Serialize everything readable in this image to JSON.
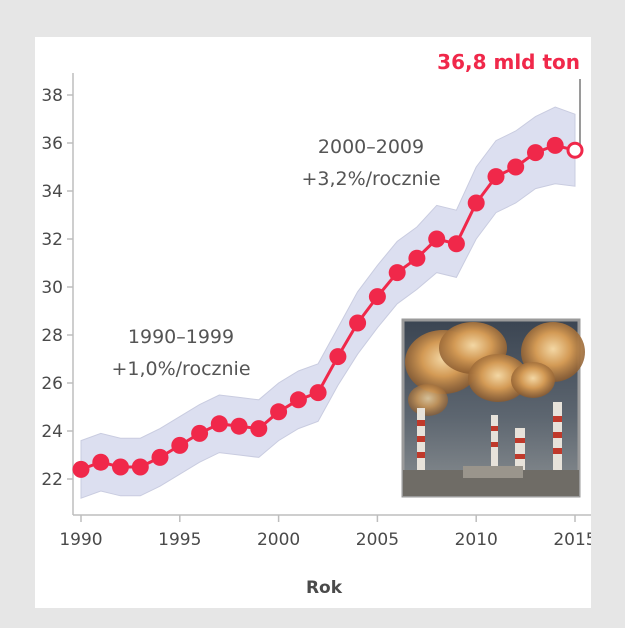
{
  "chart_data": {
    "type": "line",
    "title": "",
    "xlabel": "Rok",
    "ylabel": "",
    "xlim": [
      1990,
      2015
    ],
    "ylim": [
      21,
      38.4
    ],
    "x_ticks": [
      "1990",
      "1995",
      "2000",
      "2005",
      "2010",
      "2015"
    ],
    "y_ticks": [
      "22",
      "24",
      "26",
      "28",
      "30",
      "32",
      "34",
      "36",
      "38"
    ],
    "grid": false,
    "x": [
      1990,
      1991,
      1992,
      1993,
      1994,
      1995,
      1996,
      1997,
      1998,
      1999,
      2000,
      2001,
      2002,
      2003,
      2004,
      2005,
      2006,
      2007,
      2008,
      2009,
      2010,
      2011,
      2012,
      2013,
      2014,
      2015
    ],
    "series": [
      {
        "values": [
          22.4,
          22.7,
          22.5,
          22.5,
          22.9,
          23.4,
          23.9,
          24.3,
          24.2,
          24.1,
          24.8,
          25.3,
          25.6,
          27.1,
          28.5,
          29.6,
          30.6,
          31.2,
          32.0,
          31.8,
          33.5,
          34.6,
          35.0,
          35.6,
          35.9,
          35.7
        ],
        "lower": [
          21.2,
          21.5,
          21.3,
          21.3,
          21.7,
          22.2,
          22.7,
          23.1,
          23.0,
          22.9,
          23.6,
          24.1,
          24.4,
          25.9,
          27.2,
          28.3,
          29.3,
          29.9,
          30.6,
          30.4,
          32.0,
          33.1,
          33.5,
          34.1,
          34.3,
          34.2
        ],
        "upper": [
          23.6,
          23.9,
          23.7,
          23.7,
          24.1,
          24.6,
          25.1,
          25.5,
          25.4,
          25.3,
          26.0,
          26.5,
          26.8,
          28.3,
          29.8,
          30.9,
          31.9,
          32.5,
          33.4,
          33.2,
          35.0,
          36.1,
          36.5,
          37.1,
          37.5,
          37.2
        ]
      }
    ],
    "annotations": [
      {
        "line1": "1990–1999",
        "line2": "+1,0%/rocznie"
      },
      {
        "line1": "2000–2009",
        "line2": "+3,2%/rocznie"
      }
    ],
    "callout": "36,8 mld ton",
    "colors": {
      "line": "#f0284a",
      "band": "#dcdff0",
      "band_stroke": "#c9cce0",
      "axis": "#bdbdbd",
      "background": "#e6e6e6",
      "card": "#ffffff"
    }
  },
  "inset": {
    "icon": "smokestacks-photo"
  }
}
